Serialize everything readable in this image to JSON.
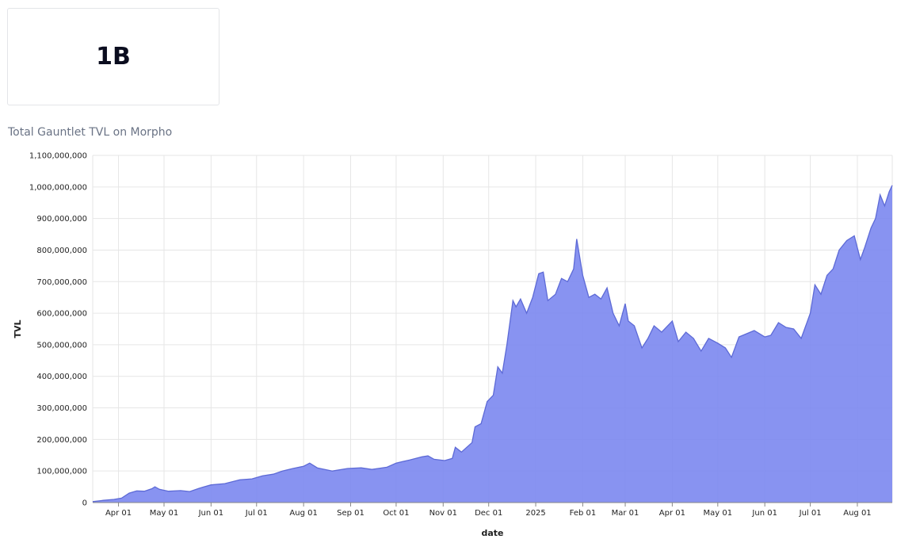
{
  "kpi": {
    "value": "1B"
  },
  "chart_data": {
    "type": "area",
    "title": "Total Gauntlet TVL on Morpho",
    "xlabel": "date",
    "ylabel": "TVL",
    "ylim": [
      0,
      1100000000
    ],
    "xlim": [
      "2024-03-15",
      "2025-08-24"
    ],
    "yticks": [
      0,
      100000000,
      200000000,
      300000000,
      400000000,
      500000000,
      600000000,
      700000000,
      800000000,
      900000000,
      1000000000,
      1100000000
    ],
    "ytick_labels": [
      "0",
      "100,000,000",
      "200,000,000",
      "300,000,000",
      "400,000,000",
      "500,000,000",
      "600,000,000",
      "700,000,000",
      "800,000,000",
      "900,000,000",
      "1,000,000,000",
      "1,100,000,000"
    ],
    "xticks": [
      {
        "date": "2024-04-01",
        "label": "Apr 01"
      },
      {
        "date": "2024-05-01",
        "label": "May 01"
      },
      {
        "date": "2024-06-01",
        "label": "Jun 01"
      },
      {
        "date": "2024-07-01",
        "label": "Jul 01"
      },
      {
        "date": "2024-08-01",
        "label": "Aug 01"
      },
      {
        "date": "2024-09-01",
        "label": "Sep 01"
      },
      {
        "date": "2024-10-01",
        "label": "Oct 01"
      },
      {
        "date": "2024-11-01",
        "label": "Nov 01"
      },
      {
        "date": "2024-12-01",
        "label": "Dec 01"
      },
      {
        "date": "2025-01-01",
        "label": "2025"
      },
      {
        "date": "2025-02-01",
        "label": "Feb 01"
      },
      {
        "date": "2025-03-01",
        "label": "Mar 01"
      },
      {
        "date": "2025-04-01",
        "label": "Apr 01"
      },
      {
        "date": "2025-05-01",
        "label": "May 01"
      },
      {
        "date": "2025-06-01",
        "label": "Jun 01"
      },
      {
        "date": "2025-07-01",
        "label": "Jul 01"
      },
      {
        "date": "2025-08-01",
        "label": "Aug 01"
      }
    ],
    "grid": true,
    "color": "#7b87f0",
    "line_color": "#5d6ad6",
    "series": [
      {
        "points": [
          [
            "2024-03-15",
            3000000
          ],
          [
            "2024-03-22",
            7000000
          ],
          [
            "2024-03-29",
            10000000
          ],
          [
            "2024-04-03",
            14000000
          ],
          [
            "2024-04-08",
            30000000
          ],
          [
            "2024-04-13",
            37000000
          ],
          [
            "2024-04-18",
            36000000
          ],
          [
            "2024-04-23",
            44000000
          ],
          [
            "2024-04-25",
            50000000
          ],
          [
            "2024-04-28",
            42000000
          ],
          [
            "2024-05-04",
            36000000
          ],
          [
            "2024-05-12",
            38000000
          ],
          [
            "2024-05-18",
            35000000
          ],
          [
            "2024-05-24",
            45000000
          ],
          [
            "2024-06-01",
            56000000
          ],
          [
            "2024-06-10",
            60000000
          ],
          [
            "2024-06-20",
            72000000
          ],
          [
            "2024-06-28",
            75000000
          ],
          [
            "2024-07-05",
            85000000
          ],
          [
            "2024-07-12",
            90000000
          ],
          [
            "2024-07-18",
            100000000
          ],
          [
            "2024-07-25",
            108000000
          ],
          [
            "2024-08-01",
            115000000
          ],
          [
            "2024-08-05",
            125000000
          ],
          [
            "2024-08-10",
            110000000
          ],
          [
            "2024-08-20",
            100000000
          ],
          [
            "2024-08-30",
            108000000
          ],
          [
            "2024-09-08",
            110000000
          ],
          [
            "2024-09-15",
            105000000
          ],
          [
            "2024-09-25",
            112000000
          ],
          [
            "2024-10-01",
            125000000
          ],
          [
            "2024-10-10",
            135000000
          ],
          [
            "2024-10-18",
            145000000
          ],
          [
            "2024-10-22",
            148000000
          ],
          [
            "2024-10-26",
            137000000
          ],
          [
            "2024-11-02",
            133000000
          ],
          [
            "2024-11-07",
            140000000
          ],
          [
            "2024-11-09",
            175000000
          ],
          [
            "2024-11-13",
            160000000
          ],
          [
            "2024-11-20",
            190000000
          ],
          [
            "2024-11-22",
            240000000
          ],
          [
            "2024-11-26",
            250000000
          ],
          [
            "2024-11-30",
            320000000
          ],
          [
            "2024-12-04",
            340000000
          ],
          [
            "2024-12-07",
            430000000
          ],
          [
            "2024-12-10",
            410000000
          ],
          [
            "2024-12-13",
            500000000
          ],
          [
            "2024-12-17",
            640000000
          ],
          [
            "2024-12-19",
            620000000
          ],
          [
            "2024-12-22",
            645000000
          ],
          [
            "2024-12-26",
            600000000
          ],
          [
            "2024-12-30",
            650000000
          ],
          [
            "2025-01-03",
            725000000
          ],
          [
            "2025-01-06",
            730000000
          ],
          [
            "2025-01-09",
            640000000
          ],
          [
            "2025-01-14",
            660000000
          ],
          [
            "2025-01-18",
            710000000
          ],
          [
            "2025-01-22",
            700000000
          ],
          [
            "2025-01-26",
            740000000
          ],
          [
            "2025-01-28",
            835000000
          ],
          [
            "2025-02-01",
            720000000
          ],
          [
            "2025-02-05",
            650000000
          ],
          [
            "2025-02-09",
            660000000
          ],
          [
            "2025-02-13",
            645000000
          ],
          [
            "2025-02-17",
            680000000
          ],
          [
            "2025-02-21",
            600000000
          ],
          [
            "2025-02-25",
            560000000
          ],
          [
            "2025-03-01",
            630000000
          ],
          [
            "2025-03-03",
            575000000
          ],
          [
            "2025-03-07",
            560000000
          ],
          [
            "2025-03-12",
            490000000
          ],
          [
            "2025-03-16",
            520000000
          ],
          [
            "2025-03-20",
            560000000
          ],
          [
            "2025-03-25",
            540000000
          ],
          [
            "2025-04-01",
            575000000
          ],
          [
            "2025-04-05",
            510000000
          ],
          [
            "2025-04-10",
            540000000
          ],
          [
            "2025-04-15",
            520000000
          ],
          [
            "2025-04-20",
            480000000
          ],
          [
            "2025-04-25",
            520000000
          ],
          [
            "2025-05-01",
            505000000
          ],
          [
            "2025-05-06",
            490000000
          ],
          [
            "2025-05-10",
            460000000
          ],
          [
            "2025-05-15",
            525000000
          ],
          [
            "2025-05-20",
            535000000
          ],
          [
            "2025-05-25",
            545000000
          ],
          [
            "2025-06-01",
            525000000
          ],
          [
            "2025-06-05",
            530000000
          ],
          [
            "2025-06-10",
            570000000
          ],
          [
            "2025-06-15",
            555000000
          ],
          [
            "2025-06-20",
            550000000
          ],
          [
            "2025-06-25",
            520000000
          ],
          [
            "2025-07-01",
            600000000
          ],
          [
            "2025-07-04",
            690000000
          ],
          [
            "2025-07-08",
            660000000
          ],
          [
            "2025-07-12",
            720000000
          ],
          [
            "2025-07-16",
            740000000
          ],
          [
            "2025-07-20",
            800000000
          ],
          [
            "2025-07-25",
            830000000
          ],
          [
            "2025-07-30",
            845000000
          ],
          [
            "2025-08-03",
            770000000
          ],
          [
            "2025-08-06",
            810000000
          ],
          [
            "2025-08-10",
            870000000
          ],
          [
            "2025-08-13",
            900000000
          ],
          [
            "2025-08-16",
            975000000
          ],
          [
            "2025-08-19",
            940000000
          ],
          [
            "2025-08-22",
            985000000
          ],
          [
            "2025-08-24",
            1005000000
          ]
        ]
      }
    ]
  }
}
